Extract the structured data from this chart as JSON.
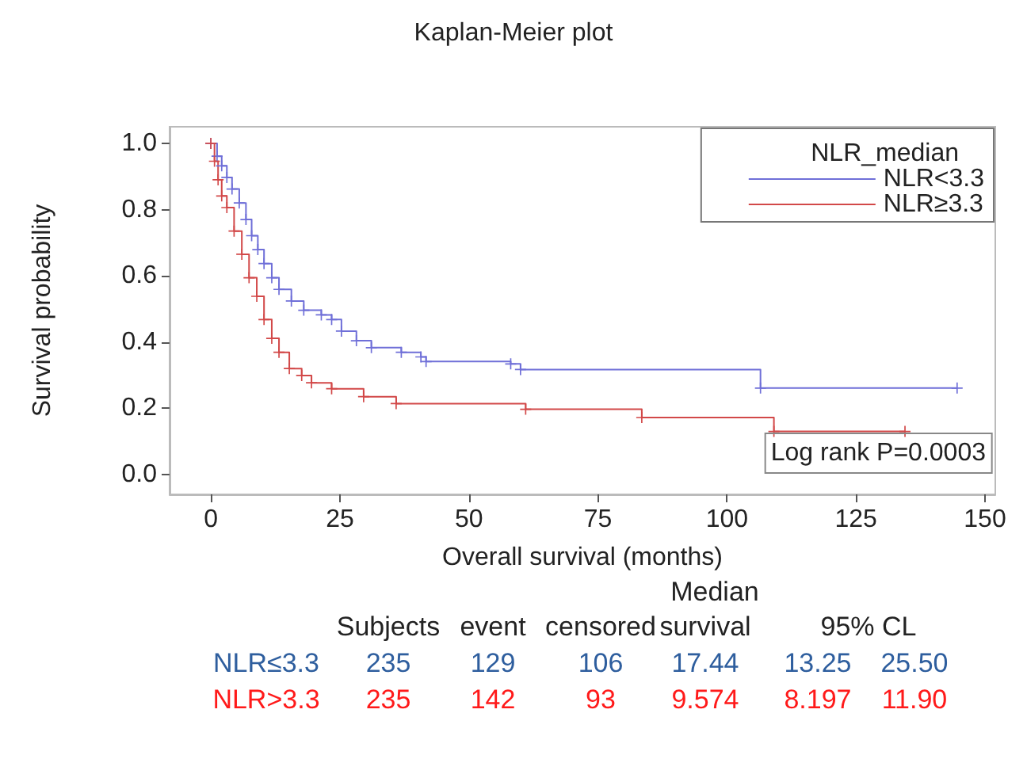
{
  "chart_data": {
    "type": "step",
    "title": "Kaplan-Meier plot",
    "xlabel": "Overall survival (months)",
    "ylabel": "Survival probability",
    "legend_title": "NLR_median",
    "xlim": [
      -8,
      152
    ],
    "xticks": [
      0,
      25,
      50,
      75,
      100,
      125,
      150
    ],
    "ylim": [
      -0.06,
      1.05
    ],
    "yticks": [
      {
        "value": 0,
        "label": "0.0"
      },
      {
        "value": 0.2,
        "label": "0.2"
      },
      {
        "value": 0.4,
        "label": "0.4"
      },
      {
        "value": 0.6,
        "label": "0.6"
      },
      {
        "value": 0.8,
        "label": "0.8"
      },
      {
        "value": 1,
        "label": "1.0"
      }
    ],
    "series": [
      {
        "name": "NLR<3.3",
        "color": "#6f6fd8",
        "x": [
          0,
          1.2,
          2.1,
          3.1,
          4.1,
          5.5,
          6.8,
          7.9,
          9.1,
          10.3,
          11.8,
          13.2,
          15.6,
          18.0,
          21.4,
          23.4,
          25.3,
          28.2,
          31.1,
          36.9,
          40.7,
          41.7,
          58.1,
          60,
          106.5,
          144.6
        ],
        "values": [
          1.0,
          0.961,
          0.932,
          0.897,
          0.862,
          0.82,
          0.77,
          0.721,
          0.679,
          0.637,
          0.594,
          0.559,
          0.524,
          0.496,
          0.482,
          0.468,
          0.433,
          0.404,
          0.383,
          0.369,
          0.355,
          0.341,
          0.334,
          0.317,
          0.261,
          0.261
        ]
      },
      {
        "name": "NLR≥3.3",
        "color": "#d24848",
        "x": [
          0,
          0.7,
          1.4,
          2.1,
          3.1,
          4.5,
          6.0,
          7.4,
          8.9,
          10.3,
          11.8,
          13.2,
          15.2,
          17.6,
          19.5,
          23.4,
          29.6,
          35.9,
          61.0,
          83.5,
          109.1,
          134.5
        ],
        "values": [
          1.0,
          0.946,
          0.89,
          0.841,
          0.806,
          0.735,
          0.665,
          0.594,
          0.538,
          0.468,
          0.411,
          0.369,
          0.32,
          0.299,
          0.277,
          0.259,
          0.235,
          0.214,
          0.197,
          0.172,
          0.13,
          0.13
        ]
      }
    ],
    "marker": "cross",
    "grid": false,
    "legend": "top right",
    "annotations": [
      "Log rank P=0.0003",
      "Median",
      "Subjects",
      "event",
      "censored",
      "survival",
      "95% CL",
      "NLR≤3.3",
      "235",
      "129",
      "106",
      "17.44",
      "13.25",
      "25.50",
      "NLR>3.3",
      "235",
      "142",
      "93",
      "9.574",
      "8.197",
      "11.90"
    ]
  }
}
